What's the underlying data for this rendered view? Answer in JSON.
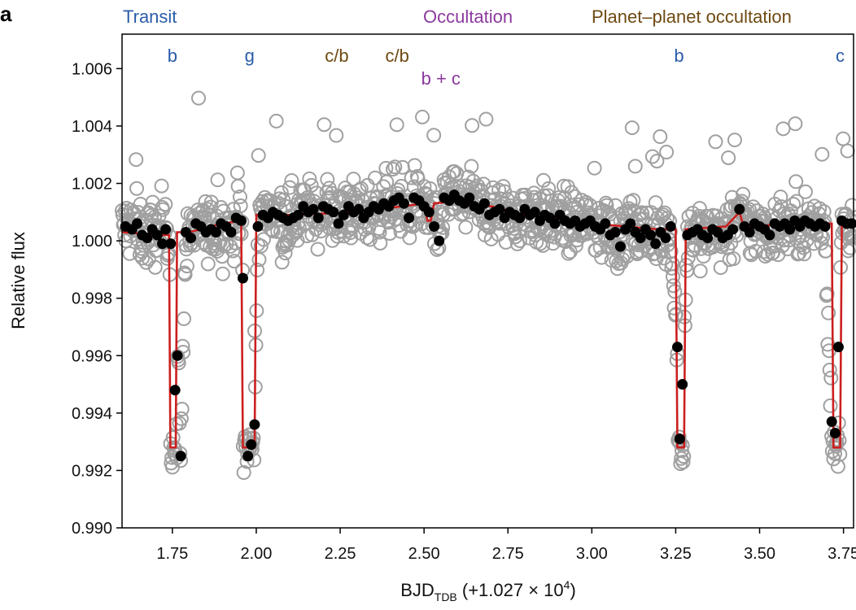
{
  "panel_label": "a",
  "category_headers": [
    {
      "text": "Transit",
      "color": "#2a5caa"
    },
    {
      "text": "Occultation",
      "color": "#8b3a9e"
    },
    {
      "text": "Planet–planet occultation",
      "color": "#6e4a12"
    }
  ],
  "event_labels": [
    {
      "text": "b",
      "x": 1.75,
      "row": 1,
      "kind": "transit"
    },
    {
      "text": "g",
      "x": 1.98,
      "row": 1,
      "kind": "transit"
    },
    {
      "text": "c/b",
      "x": 2.24,
      "row": 1,
      "kind": "ppo"
    },
    {
      "text": "c/b",
      "x": 2.42,
      "row": 1,
      "kind": "ppo"
    },
    {
      "text": "b + c",
      "x": 2.55,
      "row": 2,
      "kind": "occultation"
    },
    {
      "text": "b",
      "x": 3.26,
      "row": 1,
      "kind": "transit"
    },
    {
      "text": "c",
      "x": 3.74,
      "row": 1,
      "kind": "transit"
    }
  ],
  "colors": {
    "raw_points": "#a0a0a0",
    "binned_points": "#000000",
    "model": "#cc1f1f",
    "frame": "#000000"
  },
  "chart_data": {
    "type": "scatter",
    "xlabel_main": "BJD",
    "xlabel_sub": "TDB",
    "xlabel_tail": " (+1.027 × 10",
    "xlabel_exp": "4",
    "xlabel_close": ")",
    "ylabel": "Relative flux",
    "xlim": [
      1.6,
      3.78
    ],
    "ylim": [
      0.99,
      1.0072
    ],
    "xticks": [
      1.75,
      2.0,
      2.25,
      2.5,
      2.75,
      3.0,
      3.25,
      3.5,
      3.75
    ],
    "xtick_labels": [
      "1.75",
      "2.00",
      "2.25",
      "2.50",
      "2.75",
      "3.00",
      "3.25",
      "3.50",
      "3.75"
    ],
    "yticks": [
      0.99,
      0.992,
      0.994,
      0.996,
      0.998,
      1.0,
      1.002,
      1.004,
      1.006
    ],
    "ytick_labels": [
      "0.990",
      "0.992",
      "0.994",
      "0.996",
      "0.998",
      "1.000",
      "1.002",
      "1.004",
      "1.006"
    ],
    "grid": false,
    "series": [
      {
        "label": "raw",
        "marker": "open-circle"
      },
      {
        "label": "binned",
        "marker": "filled-circle",
        "x": [
          1.61,
          1.63,
          1.645,
          1.66,
          1.675,
          1.69,
          1.705,
          1.72,
          1.73,
          1.745,
          1.758,
          1.765,
          1.775,
          1.79,
          1.805,
          1.82,
          1.835,
          1.85,
          1.865,
          1.88,
          1.895,
          1.91,
          1.925,
          1.94,
          1.955,
          1.96,
          1.975,
          1.985,
          1.995,
          2.005,
          2.02,
          2.035,
          2.05,
          2.065,
          2.08,
          2.095,
          2.11,
          2.125,
          2.14,
          2.155,
          2.17,
          2.185,
          2.2,
          2.215,
          2.23,
          2.245,
          2.26,
          2.275,
          2.29,
          2.305,
          2.32,
          2.335,
          2.35,
          2.365,
          2.38,
          2.395,
          2.41,
          2.425,
          2.44,
          2.455,
          2.47,
          2.485,
          2.5,
          2.515,
          2.53,
          2.545,
          2.56,
          2.575,
          2.59,
          2.605,
          2.62,
          2.635,
          2.65,
          2.665,
          2.68,
          2.695,
          2.71,
          2.725,
          2.74,
          2.755,
          2.77,
          2.785,
          2.8,
          2.815,
          2.83,
          2.845,
          2.86,
          2.875,
          2.89,
          2.905,
          2.92,
          2.935,
          2.95,
          2.965,
          2.98,
          2.995,
          3.01,
          3.025,
          3.04,
          3.055,
          3.07,
          3.085,
          3.1,
          3.115,
          3.13,
          3.145,
          3.16,
          3.175,
          3.19,
          3.205,
          3.22,
          3.235,
          3.255,
          3.262,
          3.27,
          3.285,
          3.3,
          3.315,
          3.33,
          3.345,
          3.36,
          3.375,
          3.39,
          3.405,
          3.42,
          3.44,
          3.455,
          3.47,
          3.485,
          3.5,
          3.515,
          3.53,
          3.545,
          3.56,
          3.575,
          3.59,
          3.605,
          3.62,
          3.635,
          3.65,
          3.665,
          3.68,
          3.695,
          3.715,
          3.725,
          3.735,
          3.745,
          3.76,
          3.775
        ],
        "y": [
          1.0005,
          1.0004,
          1.0006,
          1.0002,
          1.0001,
          1.0004,
          1.0002,
          0.9999,
          1.0004,
          0.9999,
          0.9948,
          0.996,
          0.9925,
          1.0003,
          1.0001,
          1.0006,
          1.0005,
          1.0003,
          1.0004,
          1.0003,
          1.0006,
          1.0005,
          1.0003,
          1.0008,
          1.0007,
          0.9987,
          0.9925,
          0.9929,
          0.9936,
          1.0005,
          1.0009,
          1.0008,
          1.001,
          1.0009,
          1.0008,
          1.0007,
          1.0008,
          1.0009,
          1.0012,
          1.001,
          1.0011,
          1.0008,
          1.0012,
          1.0011,
          1.001,
          1.0006,
          1.0009,
          1.0012,
          1.001,
          1.0011,
          1.0008,
          1.001,
          1.0012,
          1.0011,
          1.0013,
          1.0012,
          1.0014,
          1.0015,
          1.0013,
          1.0008,
          1.0015,
          1.0014,
          1.0012,
          1.001,
          1.0005,
          1.0,
          1.0015,
          1.0014,
          1.0016,
          1.0014,
          1.0013,
          1.0015,
          1.0012,
          1.0011,
          1.0013,
          1.0009,
          1.001,
          1.0011,
          1.0008,
          1.001,
          1.0009,
          1.0008,
          1.0011,
          1.0009,
          1.001,
          1.0007,
          1.0009,
          1.0008,
          1.0006,
          1.0009,
          1.0007,
          1.0006,
          1.0007,
          1.0005,
          1.0006,
          1.0007,
          1.0005,
          1.0004,
          1.0006,
          1.0002,
          1.0003,
          0.9998,
          1.0004,
          1.0006,
          1.0003,
          1.0001,
          1.0004,
          1.0002,
          0.9999,
          1.0003,
          1.0001,
          1.0005,
          0.9963,
          0.9931,
          0.995,
          1.0002,
          1.0003,
          1.0004,
          1.0002,
          1.0001,
          1.0004,
          1.0003,
          1.0001,
          1.0002,
          1.0004,
          1.0011,
          1.0005,
          1.0003,
          1.0006,
          1.0005,
          1.0004,
          1.0002,
          1.0006,
          1.0005,
          1.0006,
          1.0004,
          1.0007,
          1.0005,
          1.0007,
          1.0006,
          1.0005,
          1.0006,
          1.0005,
          0.9937,
          0.9933,
          0.9963,
          1.0007,
          1.0006,
          1.0006
        ]
      }
    ],
    "model_curve": {
      "x": [
        1.6,
        1.7,
        1.74,
        1.744,
        1.76,
        1.764,
        1.8,
        1.9,
        1.955,
        1.96,
        1.995,
        2.0,
        2.1,
        2.3,
        2.5,
        2.51,
        2.52,
        2.53,
        2.6,
        2.7,
        2.8,
        2.9,
        3.0,
        3.1,
        3.2,
        3.25,
        3.255,
        3.275,
        3.28,
        3.4,
        3.44,
        3.45,
        3.47,
        3.6,
        3.7,
        3.715,
        3.72,
        3.74,
        3.745,
        3.78
      ],
      "y": [
        1.0003,
        1.0002,
        1.0002,
        0.9928,
        0.9928,
        1.0003,
        1.0003,
        1.0006,
        1.0007,
        0.9928,
        0.9928,
        1.0009,
        1.0009,
        1.001,
        1.0013,
        1.0007,
        1.0007,
        1.0013,
        1.0014,
        1.0012,
        1.0009,
        1.0008,
        1.0006,
        1.0005,
        1.0004,
        1.0004,
        0.9928,
        0.9928,
        1.0004,
        1.0005,
        1.001,
        1.0006,
        1.0005,
        1.0006,
        1.0006,
        1.0006,
        0.9928,
        0.9928,
        1.0006,
        1.0006
      ]
    }
  }
}
